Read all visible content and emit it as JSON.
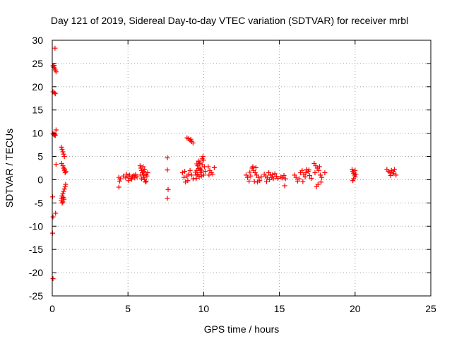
{
  "chart_data": {
    "type": "scatter",
    "title": "Day 121 of 2019, Sidereal Day-to-day VTEC variation (SDTVAR) for receiver mrbl",
    "xlabel": "GPS time / hours",
    "ylabel": "SDTVAR / TECUs",
    "xlim": [
      0,
      25
    ],
    "ylim": [
      -25,
      30
    ],
    "xticks": [
      "0",
      "5",
      "10",
      "15",
      "20",
      "25"
    ],
    "yticks": [
      "-25",
      "-20",
      "-15",
      "-10",
      "-5",
      "0",
      "5",
      "10",
      "15",
      "20",
      "25",
      "30"
    ],
    "grid": true,
    "marker": "+",
    "color": "#ff0000",
    "points": [
      [
        0.05,
        24.5
      ],
      [
        0.1,
        24.2
      ],
      [
        0.15,
        24.0
      ],
      [
        0.2,
        23.6
      ],
      [
        0.12,
        24.6
      ],
      [
        0.25,
        23.2
      ],
      [
        0.18,
        28.3
      ],
      [
        0.05,
        18.9
      ],
      [
        0.15,
        18.7
      ],
      [
        0.2,
        18.5
      ],
      [
        0.05,
        9.9
      ],
      [
        0.1,
        9.7
      ],
      [
        0.15,
        9.6
      ],
      [
        0.2,
        9.5
      ],
      [
        0.25,
        10.7
      ],
      [
        0.18,
        9.8
      ],
      [
        0.25,
        3.3
      ],
      [
        0.02,
        -3.7
      ],
      [
        0.05,
        -8.0
      ],
      [
        0.02,
        -11.5
      ],
      [
        0.05,
        -21.3
      ],
      [
        0.22,
        -7.2
      ],
      [
        0.6,
        7.0
      ],
      [
        0.65,
        6.5
      ],
      [
        0.7,
        6.0
      ],
      [
        0.75,
        5.5
      ],
      [
        0.8,
        5.0
      ],
      [
        0.62,
        3.5
      ],
      [
        0.7,
        3.0
      ],
      [
        0.75,
        2.5
      ],
      [
        0.8,
        2.0
      ],
      [
        0.85,
        1.5
      ],
      [
        0.9,
        1.8
      ],
      [
        0.82,
        2.3
      ],
      [
        0.88,
        -1.0
      ],
      [
        0.85,
        -1.5
      ],
      [
        0.8,
        -2.0
      ],
      [
        0.75,
        -2.5
      ],
      [
        0.7,
        -3.0
      ],
      [
        0.65,
        -3.5
      ],
      [
        0.62,
        -4.0
      ],
      [
        0.6,
        -4.5
      ],
      [
        0.65,
        -5.0
      ],
      [
        0.7,
        -4.8
      ],
      [
        0.78,
        -4.2
      ],
      [
        0.72,
        -3.8
      ],
      [
        4.4,
        0.5
      ],
      [
        4.45,
        -0.3
      ],
      [
        4.4,
        -1.6
      ],
      [
        4.5,
        0.2
      ],
      [
        4.7,
        0.8
      ],
      [
        4.85,
        0.4
      ],
      [
        5.0,
        0.6
      ],
      [
        5.1,
        1.0
      ],
      [
        5.2,
        0.3
      ],
      [
        5.3,
        0.7
      ],
      [
        5.4,
        0.9
      ],
      [
        5.5,
        1.1
      ],
      [
        5.6,
        0.6
      ],
      [
        4.9,
        1.2
      ],
      [
        5.05,
        -0.2
      ],
      [
        5.25,
        0.1
      ],
      [
        5.45,
        0.4
      ],
      [
        5.8,
        3.0
      ],
      [
        5.85,
        2.5
      ],
      [
        5.9,
        2.0
      ],
      [
        5.95,
        1.5
      ],
      [
        6.0,
        1.0
      ],
      [
        6.05,
        0.5
      ],
      [
        6.1,
        0.0
      ],
      [
        6.15,
        -0.5
      ],
      [
        6.2,
        1.2
      ],
      [
        6.25,
        0.8
      ],
      [
        6.3,
        1.5
      ],
      [
        6.0,
        2.8
      ],
      [
        5.9,
        0.2
      ],
      [
        6.1,
        2.2
      ],
      [
        6.2,
        -0.3
      ],
      [
        5.85,
        1.0
      ],
      [
        6.05,
        1.8
      ],
      [
        7.6,
        4.7
      ],
      [
        7.6,
        2.1
      ],
      [
        7.65,
        -2.1
      ],
      [
        7.6,
        -4.0
      ],
      [
        8.6,
        1.5
      ],
      [
        8.7,
        0.5
      ],
      [
        8.8,
        -0.5
      ],
      [
        8.9,
        0.8
      ],
      [
        9.0,
        1.2
      ],
      [
        9.1,
        2.0
      ],
      [
        9.2,
        1.0
      ],
      [
        9.3,
        0.2
      ],
      [
        8.75,
        1.8
      ],
      [
        8.95,
        -0.2
      ],
      [
        8.9,
        9.0
      ],
      [
        9.0,
        8.8
      ],
      [
        9.1,
        8.5
      ],
      [
        9.2,
        8.2
      ],
      [
        9.3,
        7.9
      ],
      [
        9.15,
        8.7
      ],
      [
        9.5,
        1.0
      ],
      [
        9.55,
        2.0
      ],
      [
        9.6,
        3.0
      ],
      [
        9.65,
        4.0
      ],
      [
        9.7,
        3.5
      ],
      [
        9.75,
        2.5
      ],
      [
        9.8,
        1.5
      ],
      [
        9.85,
        0.8
      ],
      [
        9.9,
        4.5
      ],
      [
        9.95,
        5.0
      ],
      [
        10.0,
        4.2
      ],
      [
        10.05,
        2.8
      ],
      [
        10.1,
        1.8
      ],
      [
        9.5,
        0.3
      ],
      [
        9.6,
        1.2
      ],
      [
        9.7,
        0.6
      ],
      [
        9.8,
        2.2
      ],
      [
        9.9,
        3.2
      ],
      [
        10.0,
        1.0
      ],
      [
        9.65,
        2.4
      ],
      [
        9.75,
        3.8
      ],
      [
        9.85,
        1.9
      ],
      [
        9.55,
        3.4
      ],
      [
        9.45,
        1.6
      ],
      [
        10.3,
        2.8
      ],
      [
        10.4,
        2.0
      ],
      [
        10.5,
        1.5
      ],
      [
        10.6,
        1.2
      ],
      [
        10.7,
        2.6
      ],
      [
        10.35,
        1.0
      ],
      [
        12.8,
        1.0
      ],
      [
        12.9,
        0.5
      ],
      [
        13.0,
        -0.3
      ],
      [
        13.1,
        0.8
      ],
      [
        13.2,
        2.5
      ],
      [
        13.3,
        2.0
      ],
      [
        13.4,
        1.5
      ],
      [
        13.5,
        1.0
      ],
      [
        13.6,
        0.5
      ],
      [
        13.7,
        -0.2
      ],
      [
        13.8,
        0.6
      ],
      [
        13.25,
        2.8
      ],
      [
        13.45,
        2.6
      ],
      [
        13.05,
        1.6
      ],
      [
        13.55,
        -0.5
      ],
      [
        13.35,
        -0.4
      ],
      [
        14.0,
        1.2
      ],
      [
        14.1,
        0.8
      ],
      [
        14.2,
        0.4
      ],
      [
        14.3,
        1.5
      ],
      [
        14.4,
        1.0
      ],
      [
        14.5,
        0.5
      ],
      [
        14.6,
        0.2
      ],
      [
        14.7,
        1.3
      ],
      [
        14.8,
        0.7
      ],
      [
        14.9,
        0.3
      ],
      [
        14.15,
        -0.4
      ],
      [
        14.35,
        0.0
      ],
      [
        14.55,
        1.1
      ],
      [
        15.1,
        0.6
      ],
      [
        15.3,
        0.9
      ],
      [
        15.4,
        0.2
      ],
      [
        15.35,
        -1.3
      ],
      [
        15.2,
        0.4
      ],
      [
        16.0,
        1.0
      ],
      [
        16.1,
        0.5
      ],
      [
        16.2,
        -0.3
      ],
      [
        16.4,
        1.5
      ],
      [
        16.5,
        2.0
      ],
      [
        16.6,
        1.2
      ],
      [
        16.7,
        0.6
      ],
      [
        16.8,
        2.2
      ],
      [
        16.9,
        1.8
      ],
      [
        17.0,
        0.9
      ],
      [
        17.1,
        0.3
      ],
      [
        16.55,
        -0.4
      ],
      [
        16.3,
        0.2
      ],
      [
        16.75,
        1.5
      ],
      [
        16.95,
        2.1
      ],
      [
        17.3,
        3.5
      ],
      [
        17.4,
        3.0
      ],
      [
        17.5,
        2.5
      ],
      [
        17.6,
        2.0
      ],
      [
        17.7,
        1.0
      ],
      [
        17.8,
        0.5
      ],
      [
        17.45,
        -1.5
      ],
      [
        17.55,
        -1.0
      ],
      [
        17.35,
        1.5
      ],
      [
        17.65,
        2.8
      ],
      [
        18.0,
        1.5
      ],
      [
        17.75,
        -0.5
      ],
      [
        19.8,
        2.2
      ],
      [
        19.85,
        1.8
      ],
      [
        19.9,
        1.4
      ],
      [
        19.95,
        1.0
      ],
      [
        20.0,
        0.6
      ],
      [
        19.9,
        0.2
      ],
      [
        20.05,
        1.2
      ],
      [
        20.0,
        2.0
      ],
      [
        19.85,
        -0.2
      ],
      [
        22.1,
        2.2
      ],
      [
        22.2,
        1.8
      ],
      [
        22.3,
        1.5
      ],
      [
        22.4,
        2.0
      ],
      [
        22.5,
        1.3
      ],
      [
        22.6,
        2.2
      ],
      [
        22.7,
        1.0
      ],
      [
        22.35,
        0.9
      ],
      [
        22.55,
        1.7
      ]
    ]
  }
}
